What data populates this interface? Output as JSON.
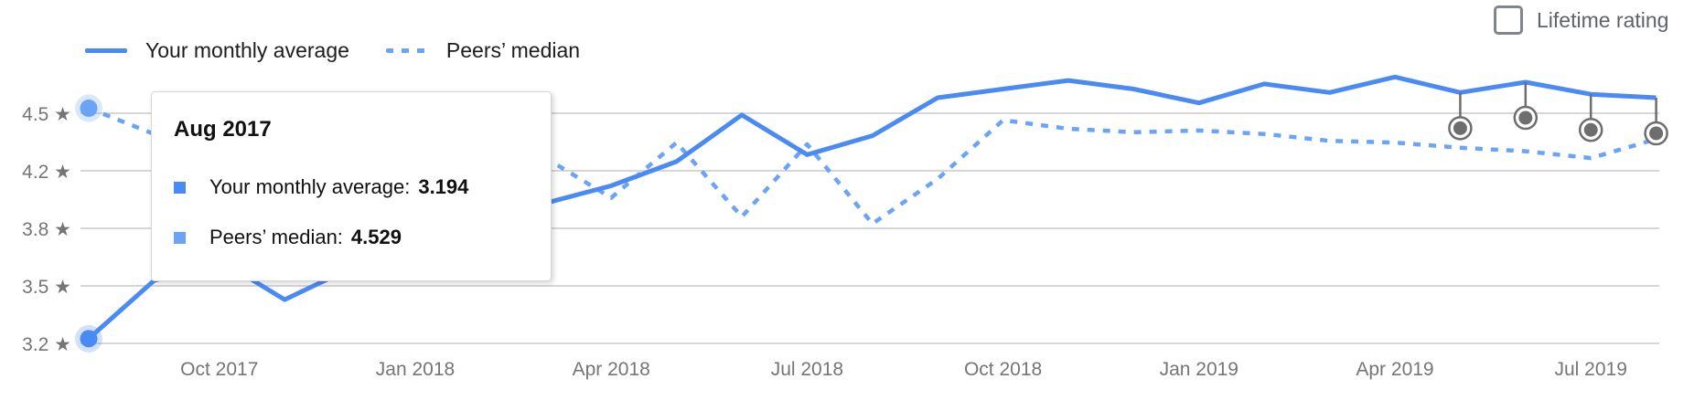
{
  "header": {
    "legend": {
      "items": [
        {
          "label": "Your monthly average",
          "style": "solid"
        },
        {
          "label": "Peers’ median",
          "style": "dotted"
        }
      ]
    },
    "lifetime_rating": {
      "label": "Lifetime rating",
      "checked": false
    }
  },
  "tooltip": {
    "title": "Aug 2017",
    "rows": [
      {
        "label": "Your monthly average:",
        "value": "3.194"
      },
      {
        "label": "Peers’ median:",
        "value": "4.529"
      }
    ]
  },
  "chart_data": {
    "type": "line",
    "x": [
      "Aug 2017",
      "Sep 2017",
      "Oct 2017",
      "Nov 2017",
      "Dec 2017",
      "Jan 2018",
      "Feb 2018",
      "Mar 2018",
      "Apr 2018",
      "May 2018",
      "Jun 2018",
      "Jul 2018",
      "Aug 2018",
      "Sep 2018",
      "Oct 2018",
      "Nov 2018",
      "Dec 2018",
      "Jan 2019",
      "Feb 2019",
      "Mar 2019",
      "Apr 2019",
      "May 2019",
      "Jun 2019",
      "Jul 2019",
      "Aug 2019"
    ],
    "x_tick_labels": [
      "Oct 2017",
      "Jan 2018",
      "Apr 2018",
      "Jul 2018",
      "Oct 2018",
      "Jan 2019",
      "Apr 2019",
      "Jul 2019"
    ],
    "y_ticks": [
      {
        "value": 4.5,
        "label": "4.5 ★"
      },
      {
        "value": 4.1667,
        "label": "4.2 ★"
      },
      {
        "value": 3.8333,
        "label": "3.8 ★"
      },
      {
        "value": 3.5,
        "label": "3.5 ★"
      },
      {
        "value": 3.1667,
        "label": "3.2 ★"
      }
    ],
    "ylim": [
      3.05,
      4.85
    ],
    "grid": "horizontal",
    "legend_position": "top-left",
    "series": [
      {
        "name": "Your monthly average",
        "style": "solid",
        "color": "#4a8af4",
        "values": [
          3.194,
          3.53,
          3.65,
          3.42,
          3.6,
          3.72,
          3.85,
          3.98,
          4.08,
          4.22,
          4.49,
          4.26,
          4.37,
          4.59,
          4.64,
          4.69,
          4.64,
          4.56,
          4.67,
          4.62,
          4.71,
          4.62,
          4.68,
          4.61,
          4.59
        ]
      },
      {
        "name": "Peers’ median",
        "style": "dotted",
        "color": "#6ba3f7",
        "values": [
          4.529,
          4.38,
          4.28,
          4.22,
          4.16,
          4.2,
          4.28,
          4.24,
          4.01,
          4.33,
          3.9,
          4.32,
          3.86,
          4.12,
          4.46,
          4.41,
          4.39,
          4.4,
          4.38,
          4.34,
          4.33,
          4.3,
          4.28,
          4.24,
          4.35
        ]
      }
    ],
    "highlighted_x": "Aug 2017",
    "event_markers": {
      "x": [
        "May 2019",
        "Jun 2019",
        "Jul 2019",
        "Aug 2019"
      ],
      "series": "Your monthly average",
      "color": "#6e6e6e"
    },
    "colors": {
      "gridline": "#c9c9c9",
      "axis_text": "#757575"
    }
  }
}
